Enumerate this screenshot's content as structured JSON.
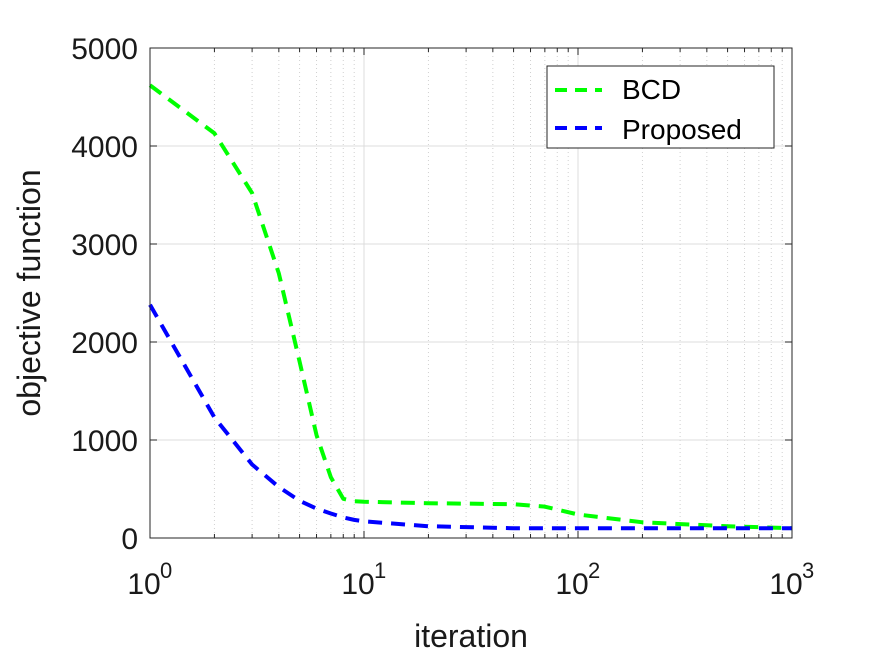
{
  "chart_data": {
    "type": "line",
    "title": "",
    "xlabel": "iteration",
    "ylabel": "objective function",
    "xscale": "log",
    "xlim": [
      1,
      1000
    ],
    "ylim": [
      0,
      5000
    ],
    "xticks": [
      1,
      10,
      100,
      1000
    ],
    "xtick_labels": [
      {
        "base": "10",
        "exp": "0"
      },
      {
        "base": "10",
        "exp": "1"
      },
      {
        "base": "10",
        "exp": "2"
      },
      {
        "base": "10",
        "exp": "3"
      }
    ],
    "yticks": [
      0,
      1000,
      2000,
      3000,
      4000,
      5000
    ],
    "ytick_labels": [
      "0",
      "1000",
      "2000",
      "3000",
      "4000",
      "5000"
    ],
    "grid": true,
    "legend_position": "top-right",
    "series": [
      {
        "name": "BCD",
        "color": "#00ff00",
        "style": "dashed",
        "x": [
          1,
          2,
          3,
          4,
          5,
          6,
          7,
          8,
          9,
          10,
          20,
          50,
          70,
          100,
          200,
          500,
          1000
        ],
        "y": [
          4620,
          4130,
          3520,
          2700,
          1800,
          1050,
          620,
          400,
          375,
          370,
          355,
          345,
          320,
          240,
          160,
          120,
          100
        ]
      },
      {
        "name": "Proposed",
        "color": "#0000ff",
        "style": "dashed",
        "x": [
          1,
          2,
          3,
          4,
          5,
          6,
          7,
          8,
          9,
          10,
          20,
          50,
          100,
          200,
          500,
          1000
        ],
        "y": [
          2380,
          1230,
          750,
          520,
          380,
          300,
          250,
          210,
          185,
          170,
          120,
          100,
          100,
          100,
          100,
          100
        ]
      }
    ]
  }
}
